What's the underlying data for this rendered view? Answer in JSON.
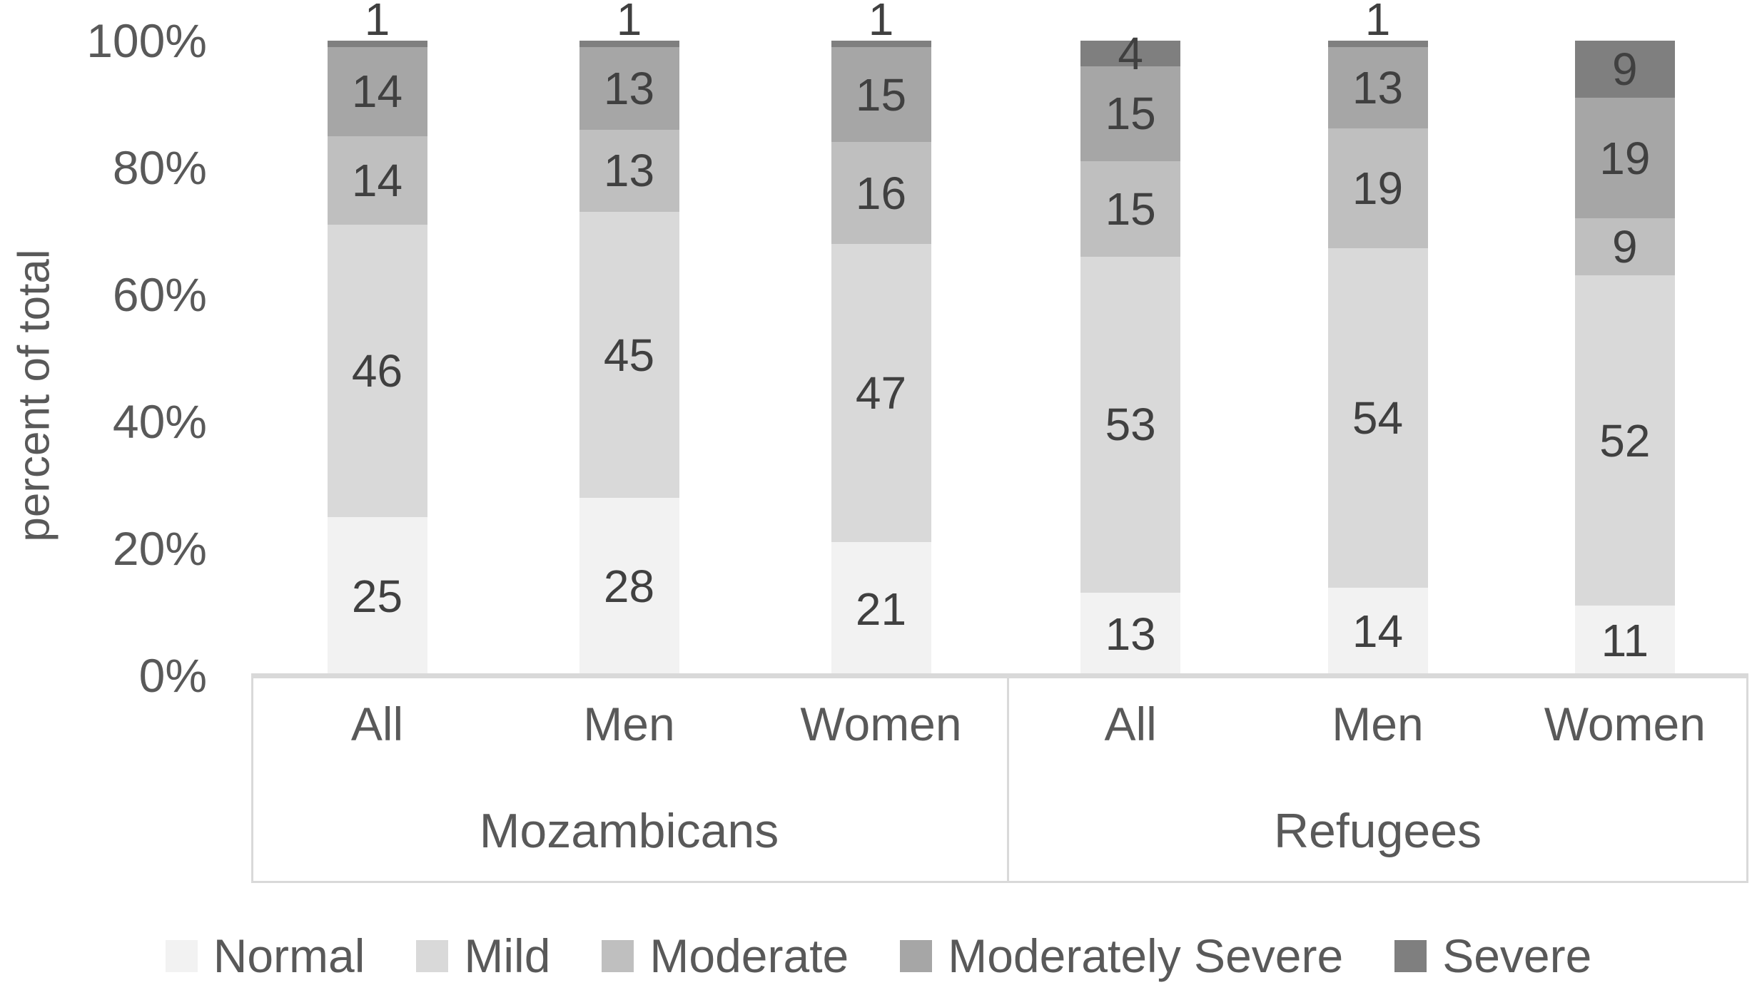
{
  "y_axis": {
    "title": "percent of total",
    "ticks": [
      "100%",
      "80%",
      "60%",
      "40%",
      "20%",
      "0%"
    ]
  },
  "x_axis": {
    "groups": [
      {
        "label": "Mozambicans",
        "categories": [
          "All",
          "Men",
          "Women"
        ]
      },
      {
        "label": "Refugees",
        "categories": [
          "All",
          "Men",
          "Women"
        ]
      }
    ]
  },
  "legend": [
    "Normal",
    "Mild",
    "Moderate",
    "Moderately Severe",
    "Severe"
  ],
  "colors": {
    "normal": "#F2F2F2",
    "mild": "#D9D9D9",
    "moderate": "#BFBFBF",
    "moderately_severe": "#A6A6A6",
    "severe": "#7F7F7F",
    "axis_text": "#595959",
    "data_label_text": "#404040",
    "axis_line": "#D9D9D9"
  },
  "chart_data": {
    "type": "bar",
    "stacked": true,
    "title": "",
    "xlabel": "",
    "ylabel": "percent of total",
    "ylim": [
      0,
      100
    ],
    "y_tick_labels": [
      "0%",
      "20%",
      "40%",
      "60%",
      "80%",
      "100%"
    ],
    "grid": false,
    "legend_position": "bottom",
    "groups": [
      "Mozambicans",
      "Refugees"
    ],
    "categories": [
      "All",
      "Men",
      "Women",
      "All",
      "Men",
      "Women"
    ],
    "series": [
      {
        "name": "Normal",
        "color": "#F2F2F2",
        "values": [
          25,
          28,
          21,
          13,
          14,
          11
        ]
      },
      {
        "name": "Mild",
        "color": "#D9D9D9",
        "values": [
          46,
          45,
          47,
          53,
          54,
          52
        ]
      },
      {
        "name": "Moderate",
        "color": "#BFBFBF",
        "values": [
          14,
          13,
          16,
          15,
          19,
          9
        ]
      },
      {
        "name": "Moderately Severe",
        "color": "#A6A6A6",
        "values": [
          14,
          13,
          15,
          15,
          13,
          19
        ]
      },
      {
        "name": "Severe",
        "color": "#7F7F7F",
        "values": [
          1,
          1,
          1,
          4,
          1,
          9
        ]
      }
    ]
  }
}
